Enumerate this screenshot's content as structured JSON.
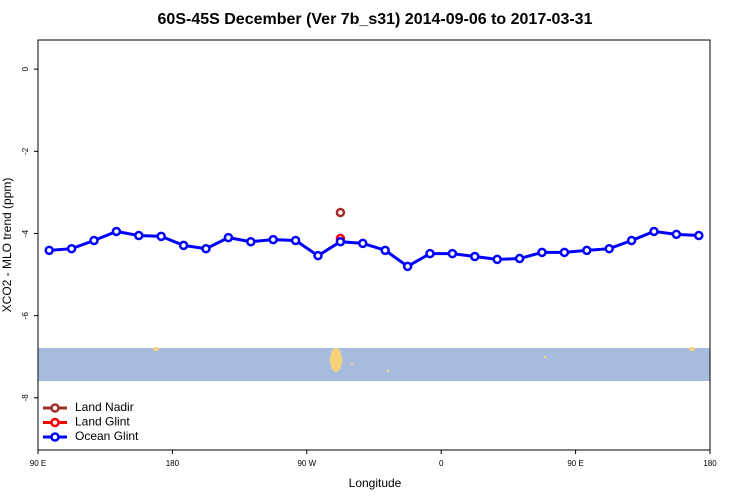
{
  "chart_data": {
    "type": "line",
    "title": "60S-45S December (Ver 7b_s31)   2014-09-06 to 2017-03-31",
    "x_label": "Longitude",
    "y_label": "XCO2 - MLO trend (ppm)",
    "xlim": [
      90,
      540
    ],
    "xticks": [
      {
        "value": 90,
        "label": "90 E"
      },
      {
        "value": 180,
        "label": "180"
      },
      {
        "value": 270,
        "label": "90 W"
      },
      {
        "value": 360,
        "label": "0"
      },
      {
        "value": 450,
        "label": "90 E"
      },
      {
        "value": 540,
        "label": "180"
      }
    ],
    "ylim": [
      -9.27,
      0.71
    ],
    "yticks": [
      0,
      -2,
      -4,
      -6,
      -8
    ],
    "legend": "bottom-left",
    "series": [
      {
        "name": "Land Nadir",
        "color": "#a52a2a",
        "x": [
          292.5
        ],
        "values": [
          -3.49
        ]
      },
      {
        "name": "Land Glint",
        "color": "#ff0000",
        "x": [
          292.5
        ],
        "values": [
          -4.12
        ]
      },
      {
        "name": "Ocean Glint",
        "color": "#0000ff",
        "x": [
          97.5,
          112.5,
          127.5,
          142.5,
          157.5,
          172.5,
          187.5,
          202.5,
          217.5,
          232.5,
          247.5,
          262.5,
          277.5,
          292.5,
          307.5,
          322.5,
          337.5,
          352.5,
          367.5,
          382.5,
          397.5,
          412.5,
          427.5,
          442.5,
          457.5,
          472.5,
          487.5,
          502.5,
          517.5,
          532.5
        ],
        "values": [
          -4.41,
          -4.37,
          -4.17,
          -3.95,
          -4.05,
          -4.07,
          -4.29,
          -4.37,
          -4.1,
          -4.2,
          -4.15,
          -4.17,
          -4.54,
          -4.2,
          -4.24,
          -4.41,
          -4.8,
          -4.49,
          -4.49,
          -4.56,
          -4.63,
          -4.61,
          -4.46,
          -4.46,
          -4.41,
          -4.37,
          -4.17,
          -3.95,
          -4.02,
          -4.05
        ]
      }
    ]
  }
}
